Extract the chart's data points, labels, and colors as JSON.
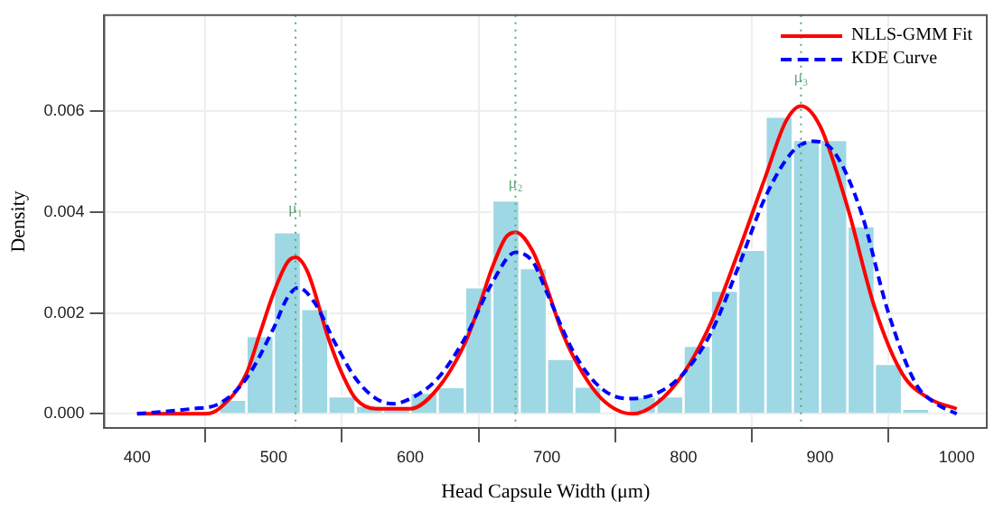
{
  "chart_data": {
    "type": "histogram",
    "xlabel": "Head Capsule Width (μm)",
    "ylabel": "Density",
    "bins": [
      460,
      480,
      500,
      520,
      540,
      560,
      580,
      600,
      620,
      640,
      660,
      680,
      700,
      720,
      740,
      760,
      780,
      800,
      820,
      840,
      860,
      880,
      900,
      920,
      940,
      960,
      980
    ],
    "values": [
      0.00028,
      0.00154,
      0.0036,
      0.00208,
      0.00035,
      0.00016,
      0.00016,
      0.00042,
      0.00053,
      0.00251,
      0.00423,
      0.00289,
      0.00109,
      0.00054,
      0,
      0.00034,
      0.00035,
      0.00135,
      0.00244,
      0.00325,
      0.00589,
      0.00543,
      0.00543,
      0.00372,
      0.00099,
      0.0001
    ],
    "color": "#9ed8e4",
    "series": [
      {
        "name": "NLLS-GMM Fit",
        "type": "line",
        "color": "#ff0000",
        "line_style": "solid",
        "x": [
          400,
          450,
          460,
          480,
          490,
          500,
          510,
          516,
          525,
          540,
          550,
          560,
          575,
          587,
          600,
          620,
          640,
          650,
          660,
          670,
          677,
          690,
          700,
          710,
          720,
          740,
          763,
          780,
          800,
          820,
          840,
          860,
          875,
          886,
          900,
          920,
          940,
          960,
          980,
          1000
        ],
        "values": [
          0,
          0,
          0.0001,
          0.0008,
          0.0016,
          0.0024,
          0.003,
          0.0031,
          0.0028,
          0.0015,
          0.0008,
          0.0003,
          0.0001,
          0.0001,
          0.0001,
          0.0005,
          0.0014,
          0.0021,
          0.0029,
          0.0035,
          0.0036,
          0.0032,
          0.0025,
          0.0017,
          0.0011,
          0.0003,
          0,
          0.0002,
          0.0008,
          0.0018,
          0.0032,
          0.0047,
          0.0058,
          0.0061,
          0.0057,
          0.0041,
          0.0021,
          0.0008,
          0.0003,
          0.0001
        ]
      },
      {
        "name": "KDE Curve",
        "type": "line",
        "color": "#0000ff",
        "line_style": "dashed",
        "x": [
          400,
          440,
          460,
          480,
          500,
          510,
          518,
          530,
          545,
          560,
          575,
          587,
          600,
          620,
          640,
          660,
          677,
          690,
          700,
          720,
          740,
          760,
          780,
          800,
          820,
          840,
          860,
          880,
          895,
          910,
          930,
          950,
          970,
          985,
          1000
        ],
        "values": [
          0,
          0.0001,
          0.0002,
          0.0007,
          0.0017,
          0.0023,
          0.0025,
          0.0022,
          0.0014,
          0.0007,
          0.0003,
          0.0002,
          0.0003,
          0.0007,
          0.0015,
          0.0026,
          0.0032,
          0.003,
          0.0024,
          0.0012,
          0.0005,
          0.0003,
          0.0004,
          0.0008,
          0.0016,
          0.0029,
          0.0043,
          0.0052,
          0.0054,
          0.0052,
          0.004,
          0.002,
          0.0006,
          0.0002,
          0
        ]
      }
    ],
    "ref_lines": [
      {
        "axis": "x",
        "value": 516,
        "color": "#5fa77a",
        "line_style": "dotted"
      },
      {
        "axis": "x",
        "value": 677,
        "color": "#5fa77a",
        "line_style": "dotted"
      },
      {
        "axis": "x",
        "value": 886,
        "color": "#5fa77a",
        "line_style": "dotted"
      }
    ],
    "annotations": [
      {
        "text": "μ₁",
        "x": 516,
        "y": 0.0039
      },
      {
        "text": "μ₂",
        "x": 677,
        "y": 0.0044
      },
      {
        "text": "μ₃",
        "x": 886,
        "y": 0.0065
      }
    ],
    "xlim": [
      376,
      1022
    ],
    "xticks": [
      400,
      500,
      600,
      700,
      800,
      900,
      1000
    ],
    "ylim": [
      -0.00028,
      0.0079
    ],
    "yticks": [
      {
        "value": 0,
        "label": "0.000"
      },
      {
        "value": 0.002,
        "label": "0.002"
      },
      {
        "value": 0.004,
        "label": "0.004"
      },
      {
        "value": 0.006,
        "label": "0.006"
      }
    ],
    "grid": true,
    "legend": "top right",
    "marker": "none"
  }
}
